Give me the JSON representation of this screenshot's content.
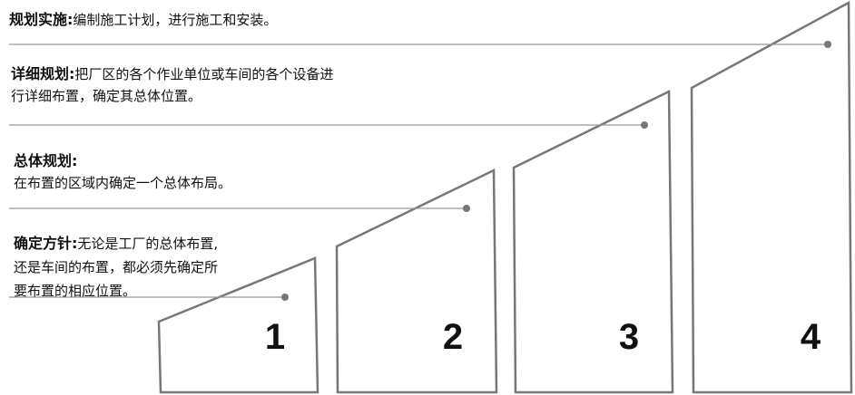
{
  "steps": [
    {
      "number": "1",
      "title": "确定方针:",
      "lines": [
        "无论是工厂的总体布置,",
        "还是车间的布置，都必须先确定所",
        "要布置的相应位置。"
      ]
    },
    {
      "number": "2",
      "title": "总体规划:",
      "lines": [
        "在布置的区域内确定一个总体布局。"
      ]
    },
    {
      "number": "3",
      "title": "详细规划:",
      "lines": [
        "把厂区的各个作业单位或车间的各个设备进",
        "行详细布置，确定其总体位置。"
      ]
    },
    {
      "number": "4",
      "title": "规划实施:",
      "lines": [
        "编制施工计划，进行施工和安装。"
      ]
    }
  ],
  "colors": {
    "stroke": "#777777",
    "leader": "#999999",
    "dot": "#777777"
  }
}
